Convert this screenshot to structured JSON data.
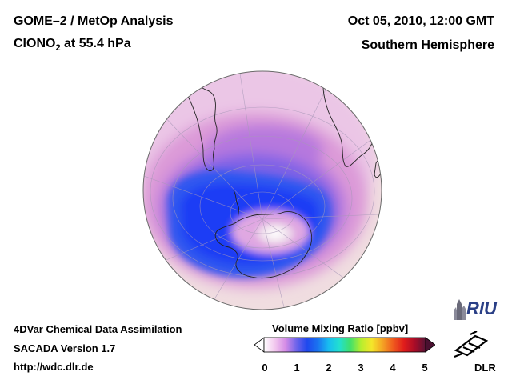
{
  "header": {
    "title": "GOME–2 / MetOp Analysis",
    "species": "ClONO",
    "species_sub": "2",
    "level": " at 55.4 hPa",
    "datetime": "Oct 05, 2010, 12:00 GMT",
    "hemisphere": "Southern Hemisphere"
  },
  "footer": {
    "line1": "4DVar Chemical Data Assimilation",
    "line2": "SACADA Version 1.7",
    "line3": "http://wdc.dlr.de"
  },
  "colorbar": {
    "title": "Volume Mixing Ratio [ppbv]",
    "ticks": [
      "0",
      "1",
      "2",
      "3",
      "4",
      "5"
    ],
    "colors": [
      "#ffffff",
      "#f2c8ee",
      "#d58ce6",
      "#6f64ea",
      "#1f48ee",
      "#1a74f0",
      "#18bdf0",
      "#22e0cf",
      "#3fe06c",
      "#b6ee2e",
      "#f4e62a",
      "#f4a424",
      "#ef5a1e",
      "#e01c1c",
      "#a80c28",
      "#581436"
    ]
  },
  "logos": {
    "riu": "RIU",
    "dlr": "DLR"
  },
  "map_colors": {
    "background": "#f0dde0",
    "pink_light": "#ebc6e6",
    "pink": "#dc9ad8",
    "lavender": "#b678de",
    "violet": "#7e62e6",
    "blue": "#2f56f0",
    "deep_blue": "#1f3ef5",
    "ring_pink": "#e0a8e2",
    "core_white": "#f6eef4",
    "coast": "#222222"
  }
}
